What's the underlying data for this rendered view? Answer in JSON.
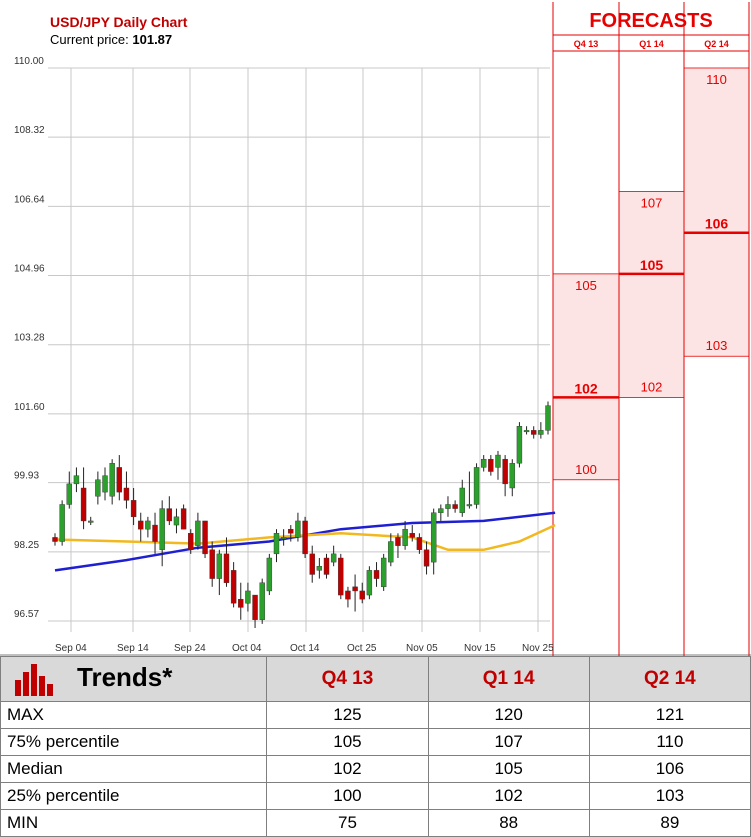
{
  "chart": {
    "title": "USD/JPY Daily Chart",
    "price_label": "Current price:",
    "price_value": "101.87"
  },
  "chart_data": [
    {
      "type": "candlestick",
      "title": "USD/JPY Daily Chart",
      "yticks": [
        "110.00",
        "108.32",
        "106.64",
        "104.96",
        "103.28",
        "101.60",
        "99.93",
        "98.25",
        "96.57"
      ],
      "xticks": [
        "Sep 04",
        "Sep 14",
        "Sep 24",
        "Oct 04",
        "Oct 14",
        "Oct 25",
        "Nov 05",
        "Nov 15",
        "Nov 25"
      ],
      "ylim": [
        96.0,
        110.0
      ],
      "grid": true,
      "candles": [
        [
          98.6,
          98.7,
          98.4,
          98.5
        ],
        [
          98.5,
          99.5,
          98.4,
          99.4
        ],
        [
          99.4,
          100.2,
          99.3,
          99.9
        ],
        [
          99.9,
          100.3,
          99.7,
          100.1
        ],
        [
          99.8,
          100.3,
          98.8,
          99.0
        ],
        [
          99.0,
          99.1,
          98.9,
          99.0
        ],
        [
          99.6,
          100.2,
          99.4,
          100.0
        ],
        [
          99.7,
          100.3,
          99.5,
          100.1
        ],
        [
          99.6,
          100.5,
          99.4,
          100.4
        ],
        [
          100.3,
          100.6,
          99.5,
          99.7
        ],
        [
          99.8,
          100.2,
          99.3,
          99.5
        ],
        [
          99.5,
          99.8,
          98.9,
          99.1
        ],
        [
          99.0,
          99.2,
          98.5,
          98.8
        ],
        [
          98.8,
          99.1,
          98.6,
          99.0
        ],
        [
          98.9,
          99.2,
          98.2,
          98.5
        ],
        [
          98.3,
          99.5,
          97.9,
          99.3
        ],
        [
          99.3,
          99.6,
          98.9,
          99.0
        ],
        [
          98.9,
          99.3,
          98.7,
          99.1
        ],
        [
          99.3,
          99.4,
          98.8,
          98.8
        ],
        [
          98.7,
          98.8,
          98.2,
          98.3
        ],
        [
          98.4,
          99.2,
          98.3,
          99.0
        ],
        [
          99.0,
          99.0,
          98.1,
          98.2
        ],
        [
          98.3,
          98.5,
          97.4,
          97.6
        ],
        [
          97.6,
          98.3,
          97.2,
          98.2
        ],
        [
          98.2,
          98.6,
          97.4,
          97.5
        ],
        [
          97.8,
          98.0,
          96.9,
          97.0
        ],
        [
          97.1,
          97.5,
          96.6,
          96.9
        ],
        [
          97.0,
          97.5,
          96.8,
          97.3
        ],
        [
          97.2,
          97.2,
          96.4,
          96.6
        ],
        [
          96.6,
          97.6,
          96.5,
          97.5
        ],
        [
          97.3,
          98.2,
          97.2,
          98.1
        ],
        [
          98.2,
          98.8,
          98.0,
          98.7
        ],
        [
          98.6,
          98.8,
          98.4,
          98.6
        ],
        [
          98.8,
          98.9,
          98.5,
          98.7
        ],
        [
          98.6,
          99.2,
          98.5,
          99.0
        ],
        [
          99.0,
          99.1,
          98.1,
          98.2
        ],
        [
          98.2,
          98.4,
          97.5,
          97.7
        ],
        [
          97.8,
          98.1,
          97.6,
          97.9
        ],
        [
          98.1,
          98.2,
          97.6,
          97.7
        ],
        [
          98.0,
          98.4,
          97.9,
          98.2
        ],
        [
          98.1,
          98.2,
          97.1,
          97.2
        ],
        [
          97.3,
          97.4,
          96.9,
          97.1
        ],
        [
          97.4,
          97.7,
          96.8,
          97.3
        ],
        [
          97.3,
          97.5,
          97.0,
          97.1
        ],
        [
          97.2,
          97.9,
          97.1,
          97.8
        ],
        [
          97.8,
          98.0,
          97.4,
          97.6
        ],
        [
          97.4,
          98.2,
          97.3,
          98.1
        ],
        [
          98.0,
          98.7,
          97.9,
          98.5
        ],
        [
          98.6,
          98.7,
          98.1,
          98.4
        ],
        [
          98.4,
          99.0,
          98.3,
          98.8
        ],
        [
          98.7,
          98.9,
          98.5,
          98.6
        ],
        [
          98.6,
          98.7,
          98.2,
          98.3
        ],
        [
          98.3,
          98.5,
          97.7,
          97.9
        ],
        [
          98.0,
          99.3,
          97.7,
          99.2
        ],
        [
          99.2,
          99.4,
          99.0,
          99.3
        ],
        [
          99.3,
          99.6,
          99.1,
          99.4
        ],
        [
          99.4,
          99.5,
          99.2,
          99.3
        ],
        [
          99.2,
          100.0,
          99.1,
          99.8
        ],
        [
          99.4,
          100.2,
          99.3,
          99.4
        ],
        [
          99.4,
          100.4,
          99.3,
          100.3
        ],
        [
          100.3,
          100.6,
          100.2,
          100.5
        ],
        [
          100.5,
          100.6,
          100.1,
          100.2
        ],
        [
          100.3,
          100.7,
          100.0,
          100.6
        ],
        [
          100.5,
          100.6,
          99.6,
          99.9
        ],
        [
          99.8,
          100.5,
          99.6,
          100.4
        ],
        [
          100.4,
          101.4,
          100.3,
          101.3
        ],
        [
          101.2,
          101.3,
          101.1,
          101.2
        ],
        [
          101.2,
          101.3,
          101.0,
          101.1
        ],
        [
          101.1,
          101.4,
          101.0,
          101.2
        ],
        [
          101.2,
          101.9,
          101.1,
          101.8
        ]
      ],
      "series": [
        {
          "name": "",
          "color": "#1f1fd2",
          "values": [
            [
              0,
              97.8
            ],
            [
              10,
              98.05
            ],
            [
              20,
              98.35
            ],
            [
              30,
              98.5
            ],
            [
              40,
              98.8
            ],
            [
              50,
              98.95
            ],
            [
              60,
              99.0
            ],
            [
              70,
              99.2
            ]
          ]
        },
        {
          "name": "",
          "color": "#f2b81f",
          "values": [
            [
              0,
              98.55
            ],
            [
              10,
              98.5
            ],
            [
              20,
              98.45
            ],
            [
              30,
              98.6
            ],
            [
              40,
              98.7
            ],
            [
              50,
              98.6
            ],
            [
              55,
              98.3
            ],
            [
              60,
              98.3
            ],
            [
              65,
              98.5
            ],
            [
              70,
              98.9
            ]
          ]
        }
      ]
    },
    {
      "type": "table",
      "title": "FORECASTS",
      "columns": [
        "Q4 13",
        "Q1 14",
        "Q2 14"
      ],
      "ylim": [
        96.0,
        110.0
      ],
      "bands": [
        {
          "column": "Q4 13",
          "p75": 105,
          "median": 102,
          "p25": 100
        },
        {
          "column": "Q1 14",
          "p75": 107,
          "median": 105,
          "p25": 102
        },
        {
          "column": "Q2 14",
          "p75": 110,
          "median": 106,
          "p25": 103
        }
      ]
    }
  ],
  "forecasts": {
    "title": "FORECASTS",
    "columns": [
      "Q4 13",
      "Q1 14",
      "Q2 14"
    ],
    "bands": [
      {
        "top_label": "105",
        "mid_label": "102",
        "bottom_label": "100"
      },
      {
        "top_label": "107",
        "mid_label": "105",
        "bottom_label": "102"
      },
      {
        "top_label": "110",
        "mid_label": "106",
        "bottom_label": "103"
      }
    ]
  },
  "trends": {
    "title": "Trends*",
    "headers": [
      "Q4 13",
      "Q1 14",
      "Q2 14"
    ],
    "rows": [
      {
        "label": "MAX",
        "values": [
          "125",
          "120",
          "121"
        ]
      },
      {
        "label": "75% percentile",
        "values": [
          "105",
          "107",
          "110"
        ]
      },
      {
        "label": "Median",
        "values": [
          "102",
          "105",
          "106"
        ]
      },
      {
        "label": "25% percentile",
        "values": [
          "100",
          "102",
          "103"
        ]
      },
      {
        "label": "MIN",
        "values": [
          "75",
          "88",
          "89"
        ]
      }
    ]
  },
  "colors": {
    "up": "#2ca02c",
    "down": "#c00000",
    "forecast_red": "#e60000",
    "forecast_fill": "#fde4e4",
    "header_gray": "#d9d9d9"
  }
}
